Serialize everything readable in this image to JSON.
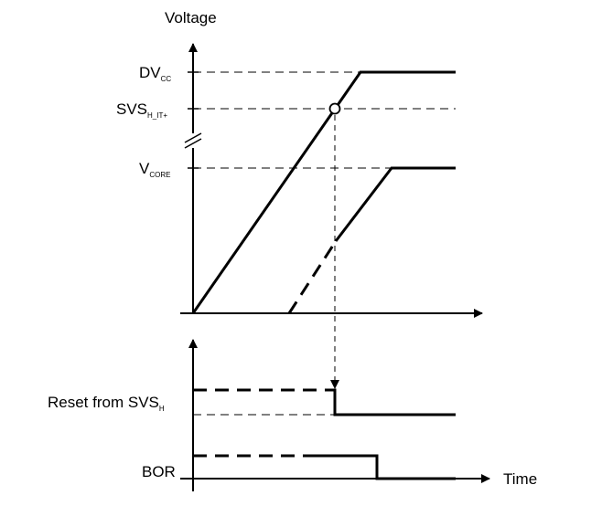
{
  "diagram": {
    "y_axis_label": "Voltage",
    "x_axis_label": "Time",
    "levels": {
      "dvcc": {
        "main": "DV",
        "sub": "CC"
      },
      "svs_h_it": {
        "main": "SVS",
        "sub": "H_IT+"
      },
      "vcore": {
        "main": "V",
        "sub": "CORE"
      }
    },
    "signals": {
      "reset_svs": {
        "main": "Reset from SVS",
        "sub": "H"
      },
      "bor": {
        "main": "BOR"
      }
    }
  }
}
